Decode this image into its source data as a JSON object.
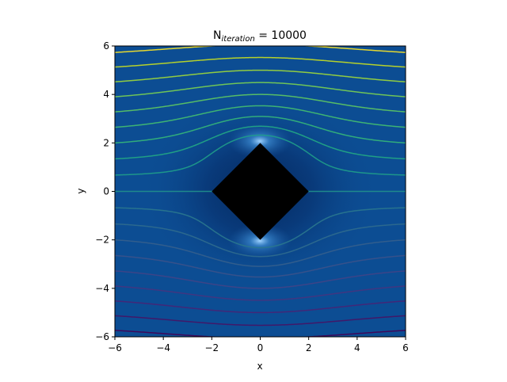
{
  "chart_data": {
    "type": "streamline",
    "title": {
      "base": "N",
      "subscript": "iteration",
      "rest": " = 10000"
    },
    "x_label": "x",
    "y_label": "y",
    "xlim": [
      -6,
      6
    ],
    "ylim": [
      -6,
      6
    ],
    "xticks": [
      {
        "value": -6,
        "label": "−6"
      },
      {
        "value": -4,
        "label": "−4"
      },
      {
        "value": -2,
        "label": "−2"
      },
      0,
      2,
      4,
      6
    ],
    "yticks": [
      {
        "value": -6,
        "label": "−6"
      },
      {
        "value": -4,
        "label": "−4"
      },
      {
        "value": -2,
        "label": "−2"
      },
      0,
      2,
      4,
      6
    ],
    "obstacle": {
      "x": [
        -2,
        0,
        2,
        0
      ],
      "y": [
        0,
        2,
        0,
        -2
      ],
      "color": "#000000"
    },
    "body_radius": 2,
    "streamlines": [
      {
        "y0": -5.4,
        "color": "#440154"
      },
      {
        "y0": -4.8,
        "color": "#471365"
      },
      {
        "y0": -4.2,
        "color": "#482475"
      },
      {
        "y0": -3.6,
        "color": "#463480"
      },
      {
        "y0": -3.0,
        "color": "#414487"
      },
      {
        "y0": -2.4,
        "color": "#3b528b"
      },
      {
        "y0": -1.8,
        "color": "#355f8d"
      },
      {
        "y0": -1.2,
        "color": "#2f6c8e"
      },
      {
        "y0": -0.6,
        "color": "#2a788e"
      },
      {
        "y0": 0,
        "color": "#21918c"
      },
      {
        "y0": 0.6,
        "color": "#1f9e89"
      },
      {
        "y0": 1.2,
        "color": "#22a884"
      },
      {
        "y0": 1.8,
        "color": "#35b779"
      },
      {
        "y0": 2.4,
        "color": "#44bf70"
      },
      {
        "y0": 3.0,
        "color": "#5ec962"
      },
      {
        "y0": 3.6,
        "color": "#7ad151"
      },
      {
        "y0": 4.2,
        "color": "#a0da39"
      },
      {
        "y0": 4.8,
        "color": "#c8e020"
      },
      {
        "y0": 5.4,
        "color": "#fde725"
      }
    ]
  }
}
